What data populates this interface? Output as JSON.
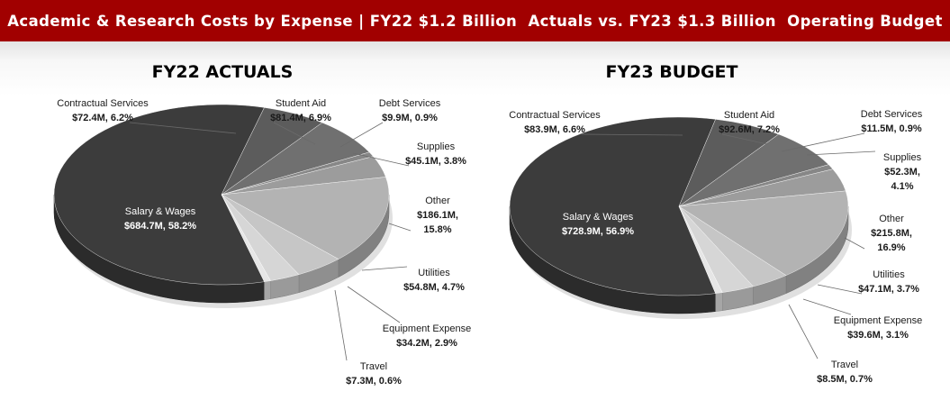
{
  "banner": {
    "title": "Academic & Research Costs by Expense | FY22 $1.2 Billion  Actuals vs. FY23 $1.3 Billion  Operating Budget"
  },
  "chart_data": [
    {
      "type": "pie",
      "title": "FY22 ACTUALS",
      "categories": [
        "Salary & Wages",
        "Contractual Services",
        "Student Aid",
        "Debt Services",
        "Supplies",
        "Other",
        "Utilities",
        "Equipment Expense",
        "Travel"
      ],
      "values": [
        684.7,
        72.4,
        81.4,
        9.9,
        45.1,
        186.1,
        54.8,
        34.2,
        7.3
      ],
      "percentages": [
        58.2,
        6.2,
        6.9,
        0.9,
        3.8,
        15.8,
        4.7,
        2.9,
        0.6
      ],
      "labels": [
        {
          "name": "Salary & Wages",
          "value": "$684.7M, 58.2%"
        },
        {
          "name": "Contractual Services",
          "value": "$72.4M, 6.2%"
        },
        {
          "name": "Student Aid",
          "value": "$81.4M, 6.9%"
        },
        {
          "name": "Debt Services",
          "value": "$9.9M, 0.9%"
        },
        {
          "name": "Supplies",
          "value": "$45.1M, 3.8%"
        },
        {
          "name": "Other",
          "value": "$186.1M,",
          "value2": "15.8%"
        },
        {
          "name": "Utilities",
          "value": "$54.8M, 4.7%"
        },
        {
          "name": "Equipment Expense",
          "value": "$34.2M, 2.9%"
        },
        {
          "name": "Travel",
          "value": "$7.3M, 0.6%"
        }
      ]
    },
    {
      "type": "pie",
      "title": "FY23 BUDGET",
      "categories": [
        "Salary & Wages",
        "Contractual Services",
        "Student Aid",
        "Debt Services",
        "Supplies",
        "Other",
        "Utilities",
        "Equipment Expense",
        "Travel"
      ],
      "values": [
        728.9,
        83.9,
        92.6,
        11.5,
        52.3,
        215.8,
        47.1,
        39.6,
        8.5
      ],
      "percentages": [
        56.9,
        6.6,
        7.2,
        0.9,
        4.1,
        16.9,
        3.7,
        3.1,
        0.7
      ],
      "labels": [
        {
          "name": "Salary & Wages",
          "value": "$728.9M, 56.9%"
        },
        {
          "name": "Contractual Services",
          "value": "$83.9M, 6.6%"
        },
        {
          "name": "Student Aid",
          "value": "$92.6M, 7.2%"
        },
        {
          "name": "Debt Services",
          "value": "$11.5M, 0.9%"
        },
        {
          "name": "Supplies",
          "value": "$52.3M,",
          "value2": "4.1%"
        },
        {
          "name": "Other",
          "value": "$215.8M,",
          "value2": "16.9%"
        },
        {
          "name": "Utilities",
          "value": "$47.1M, 3.7%"
        },
        {
          "name": "Equipment Expense",
          "value": "$39.6M, 3.1%"
        },
        {
          "name": "Travel",
          "value": "$8.5M, 0.7%"
        }
      ]
    }
  ],
  "colors": [
    "#3c3c3c",
    "#5c5c5c",
    "#707070",
    "#878787",
    "#9c9c9c",
    "#b3b3b3",
    "#c6c6c6",
    "#d6d6d6",
    "#e6e6e6"
  ]
}
